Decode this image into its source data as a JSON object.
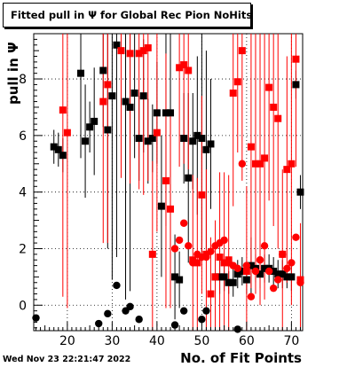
{
  "title": "Fitted pull in Ψ for Global Rec Pion NoHits",
  "datestamp": "Wed Nov 23 22:21:47 2022",
  "chart_data": {
    "type": "scatter",
    "xlabel": "No. of Fit Points",
    "ylabel": "pull in Ψ",
    "xlim": [
      12.5,
      72.5
    ],
    "ylim": [
      -0.9,
      9.6
    ],
    "xticks": [
      20,
      30,
      40,
      50,
      60,
      70
    ],
    "yticks": [
      0,
      2,
      4,
      6,
      8
    ],
    "grid": true,
    "legend": "none",
    "series": [
      {
        "color": "#000000",
        "marker": "square",
        "x": [
          17,
          18,
          19,
          23,
          24,
          25,
          26,
          28,
          29,
          30,
          31,
          33,
          34,
          35,
          36,
          37,
          38,
          39,
          40,
          41,
          42,
          43,
          44,
          45,
          46,
          47,
          48,
          49,
          50,
          51,
          52,
          53,
          54,
          55,
          56,
          57,
          58,
          59,
          60,
          61,
          62,
          63,
          64,
          65,
          66,
          67,
          68,
          69,
          70,
          71,
          72
        ],
        "y": [
          5.6,
          5.5,
          5.3,
          8.2,
          5.8,
          6.3,
          6.5,
          8.3,
          6.2,
          7.4,
          9.2,
          7.2,
          7.0,
          7.5,
          5.9,
          7.4,
          5.8,
          5.9,
          6.8,
          3.5,
          6.8,
          6.8,
          1.0,
          0.9,
          5.9,
          4.5,
          5.8,
          6.0,
          5.9,
          5.5,
          5.7,
          1.0,
          1.0,
          1.0,
          0.8,
          0.8,
          1.1,
          1.2,
          0.9,
          1.4,
          1.3,
          1.1,
          1.3,
          1.3,
          1.2,
          1.1,
          1.1,
          1.0,
          1.0,
          7.8,
          4.0
        ],
        "err": [
          0.6,
          0.6,
          0.6,
          3.0,
          2.0,
          0.9,
          1.9,
          2.0,
          4.2,
          6.5,
          7.5,
          7.0,
          6.5,
          2.3,
          1.5,
          2.0,
          1.5,
          1.2,
          1.8,
          2.5,
          4.0,
          4.8,
          1.5,
          1.0,
          1.6,
          3.0,
          1.7,
          2.8,
          4.2,
          3.5,
          2.3,
          0.6,
          0.6,
          0.5,
          0.4,
          0.5,
          0.5,
          0.5,
          0.5,
          1.0,
          0.5,
          0.5,
          0.5,
          0.5,
          0.5,
          0.5,
          0.5,
          0.4,
          0.5,
          0.5,
          0.6
        ]
      },
      {
        "color": "#000000",
        "marker": "circle",
        "x": [
          13,
          27,
          29,
          31,
          33,
          34,
          36,
          44,
          46,
          50,
          51,
          58
        ],
        "y": [
          -0.45,
          -0.65,
          -0.3,
          0.7,
          -0.2,
          -0.05,
          -0.5,
          -0.7,
          -0.2,
          -0.5,
          -0.2,
          -0.85
        ],
        "err": [
          0,
          0,
          0,
          0,
          0,
          0,
          0,
          0,
          0,
          0,
          0,
          0
        ]
      },
      {
        "color": "#ff0000",
        "marker": "square",
        "x": [
          19,
          20,
          28,
          29,
          32,
          34,
          36,
          37,
          38,
          39,
          40,
          42,
          43,
          45,
          46,
          47,
          48,
          49,
          50,
          51,
          52,
          53,
          54,
          55,
          56,
          57,
          58,
          59,
          60,
          61,
          62,
          63,
          64,
          65,
          66,
          67,
          68,
          69,
          70,
          71,
          72
        ],
        "y": [
          6.9,
          6.1,
          7.2,
          7.8,
          9.0,
          8.9,
          8.9,
          9.0,
          9.1,
          1.8,
          6.1,
          4.4,
          3.4,
          8.4,
          8.5,
          8.3,
          1.6,
          1.5,
          3.9,
          1.8,
          0.4,
          1.0,
          1.7,
          1.5,
          1.6,
          7.5,
          7.9,
          9.0,
          1.2,
          5.6,
          5.0,
          5.0,
          5.2,
          7.7,
          7.0,
          6.6,
          1.8,
          4.8,
          5.0,
          8.7,
          0.9
        ],
        "err": [
          6.6,
          6.2,
          5.0,
          5.6,
          4.5,
          4.6,
          4.8,
          5.1,
          4.7,
          3.3,
          3.5,
          4.5,
          3.5,
          3.5,
          3.5,
          3.5,
          3.0,
          3.0,
          3.5,
          3.0,
          2.0,
          2.0,
          3.0,
          3.2,
          3.0,
          4.0,
          2.5,
          4.6,
          3.0,
          5.0,
          4.6,
          5.0,
          5.0,
          4.0,
          4.2,
          4.6,
          3.0,
          4.0,
          5.0,
          3.8,
          2.0
        ]
      },
      {
        "color": "#ff0000",
        "marker": "circle",
        "x": [
          44,
          45,
          46,
          47,
          48,
          49,
          50,
          51,
          52,
          53,
          54,
          55,
          56,
          57,
          58,
          59,
          60,
          61,
          62,
          63,
          64,
          65,
          66,
          67,
          68,
          69,
          70,
          71,
          72
        ],
        "y": [
          2.0,
          2.3,
          2.9,
          2.1,
          1.5,
          1.8,
          1.7,
          1.7,
          1.9,
          2.1,
          2.2,
          2.3,
          1.5,
          1.4,
          1.3,
          5.0,
          1.4,
          0.3,
          1.2,
          1.6,
          2.1,
          1.2,
          0.6,
          0.9,
          1.8,
          1.3,
          1.5,
          2.4,
          0.8
        ],
        "err": [
          0,
          0,
          0,
          0,
          0,
          0,
          0,
          0,
          0,
          0,
          0,
          0,
          0,
          0,
          0,
          0,
          0,
          0,
          0,
          0,
          0,
          0,
          0,
          0,
          0,
          0,
          0,
          0,
          0
        ]
      }
    ]
  }
}
